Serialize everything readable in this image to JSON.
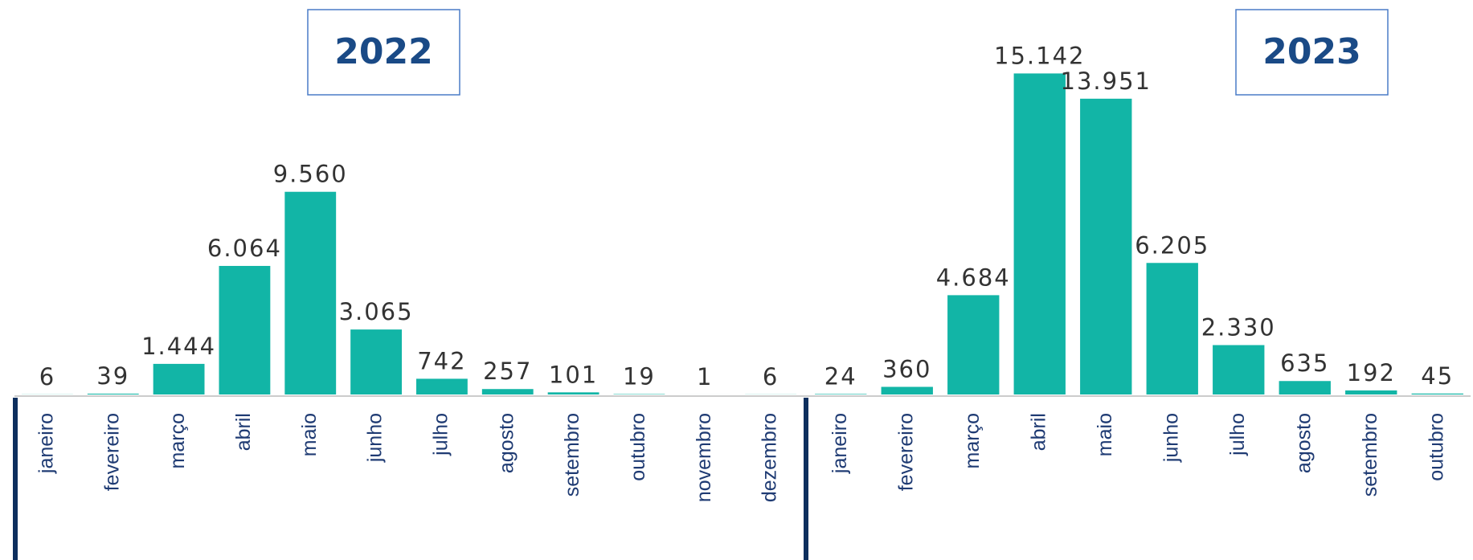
{
  "chart_data": [
    {
      "type": "bar",
      "title": "2022",
      "categories": [
        "janeiro",
        "fevereiro",
        "março",
        "abril",
        "maio",
        "junho",
        "julho",
        "agosto",
        "setembro",
        "outubro",
        "novembro",
        "dezembro"
      ],
      "values": [
        6,
        39,
        1444,
        6064,
        9560,
        3065,
        742,
        257,
        101,
        19,
        1,
        6
      ],
      "value_labels": [
        "6",
        "39",
        "1.444",
        "6.064",
        "9.560",
        "3.065",
        "742",
        "257",
        "101",
        "19",
        "1",
        "6"
      ],
      "color": "#12b5a6",
      "ylim": [
        0,
        18000
      ]
    },
    {
      "type": "bar",
      "title": "2023",
      "categories": [
        "janeiro",
        "fevereiro",
        "março",
        "abril",
        "maio",
        "junho",
        "julho",
        "agosto",
        "setembro",
        "outubro"
      ],
      "values": [
        24,
        360,
        4684,
        15142,
        13951,
        6205,
        2330,
        635,
        192,
        45
      ],
      "value_labels": [
        "24",
        "360",
        "4.684",
        "15.142",
        "13.951",
        "6.205",
        "2.330",
        "635",
        "192",
        "45"
      ],
      "color": "#12b5a6",
      "ylim": [
        0,
        18000
      ]
    }
  ]
}
